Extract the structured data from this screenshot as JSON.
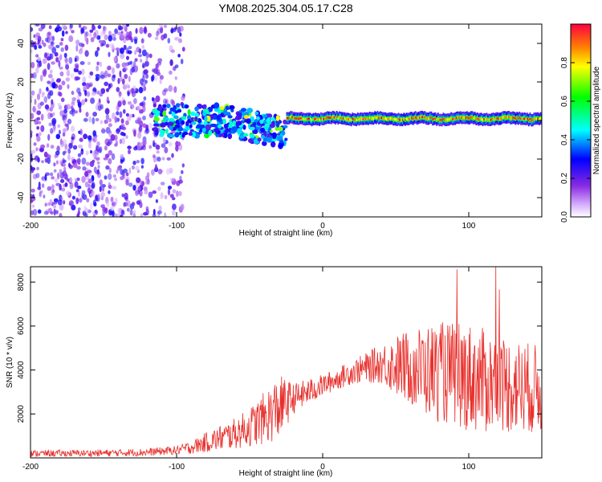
{
  "figure_title": "YM08.2025.304.05.17.C28",
  "chart_data": [
    {
      "type": "heatmap",
      "xlabel": "Height of straight line (km)",
      "ylabel": "Frequency (Hz)",
      "xlim": [
        -200,
        150
      ],
      "ylim": [
        -50,
        50
      ],
      "x_ticks": [
        -200,
        -100,
        0,
        100
      ],
      "y_ticks": [
        -40,
        -20,
        0,
        20,
        40
      ],
      "colorbar": {
        "label": "Normalized spectral amplitude",
        "range": [
          0,
          1
        ],
        "ticks": [
          0.0,
          0.2,
          0.4,
          0.6,
          0.8
        ],
        "tick_labels": [
          "0.0",
          "0.2",
          "0.4",
          "0.6",
          "0.8"
        ]
      },
      "regions": [
        {
          "name": "noise",
          "x_range": [
            -200,
            -95
          ],
          "freq_range": [
            -50,
            50
          ],
          "amplitude_range": [
            0.05,
            0.3
          ]
        },
        {
          "name": "spread-onset",
          "x_range": [
            -115,
            -25
          ],
          "freq_center": 0,
          "freq_spread": 8,
          "amplitude_range": [
            0.2,
            0.5
          ]
        },
        {
          "name": "coherent-line",
          "x_range": [
            -25,
            150
          ],
          "freq_center": 1,
          "freq_spread": 2,
          "amplitude_range": [
            0.4,
            1.0
          ]
        }
      ]
    },
    {
      "type": "line",
      "xlabel": "Height of straight line (km)",
      "ylabel": "SNR (10 * v/v)",
      "xlim": [
        -200,
        150
      ],
      "ylim": [
        0,
        8700
      ],
      "x_ticks": [
        -200,
        -100,
        0,
        100
      ],
      "y_ticks": [
        2000,
        4000,
        6000,
        8000
      ],
      "series_color": "#e8302c",
      "envelope": {
        "x": [
          -200,
          -150,
          -120,
          -100,
          -90,
          -80,
          -70,
          -60,
          -50,
          -40,
          -30,
          -20,
          -10,
          0,
          10,
          20,
          30,
          40,
          50,
          60,
          70,
          80,
          90,
          100,
          110,
          120,
          130,
          140,
          150
        ],
        "mean": [
          200,
          220,
          260,
          350,
          480,
          700,
          900,
          1100,
          1400,
          1800,
          2300,
          2700,
          3000,
          3300,
          3600,
          3900,
          4100,
          4300,
          4200,
          4100,
          4000,
          3900,
          3800,
          3700,
          3500,
          3400,
          3300,
          3200,
          3100
        ],
        "spread": [
          150,
          160,
          180,
          200,
          300,
          450,
          600,
          700,
          900,
          1200,
          1500,
          700,
          600,
          500,
          500,
          550,
          700,
          900,
          1400,
          1800,
          2100,
          2300,
          2400,
          2500,
          2400,
          2300,
          2200,
          2100,
          2000
        ]
      },
      "peak_max": 8700
    }
  ]
}
